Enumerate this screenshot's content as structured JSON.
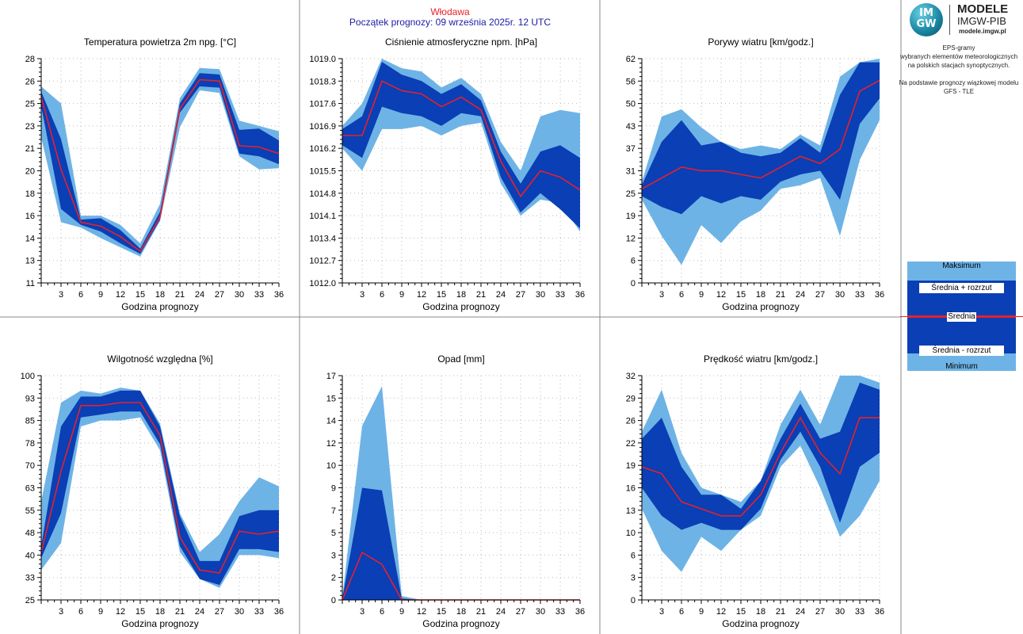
{
  "header": {
    "station": "Włodawa",
    "subtitle": "Początek prognozy: 09 września 2025r. 12 UTC"
  },
  "logo": {
    "mark_top": "IM",
    "mark_bottom": "GW",
    "title": "MODELE",
    "subtitle": "IMGW-PIB",
    "url": "modele.imgw.pl"
  },
  "side_description": [
    "EPS-gramy",
    "wybranych elementów meteorologicznych",
    "na polskich stacjach  synoptycznych.",
    "",
    "Na podstawie prognozy wiązkowej modelu",
    "GFS - TLE"
  ],
  "legend": {
    "max": "Maksimum",
    "mean_plus": "Średnia + rozrzut",
    "mean": "Średnia",
    "mean_minus": "Średnia - rozrzut",
    "min": "Minimum"
  },
  "colors": {
    "min_max_band": "#6eb3e6",
    "spread_band": "#0a3fb5",
    "mean_line": "#e8202a",
    "station_title": "#e8202a",
    "subtitle": "#1b1ba8"
  },
  "chart_data": [
    {
      "type": "area",
      "title": "Temperatura powietrza 2m npg. [°C]",
      "xlabel": "Godzina prognozy",
      "x": [
        0,
        3,
        6,
        9,
        12,
        15,
        18,
        21,
        24,
        27,
        30,
        33,
        36
      ],
      "yticks": [
        "11",
        "13",
        "14",
        "16",
        "18",
        "20",
        "21",
        "23",
        "25",
        "26",
        "28"
      ],
      "ylim": [
        11,
        28
      ],
      "series": [
        {
          "name": "Maksimum",
          "values": [
            25.9,
            24.6,
            16.1,
            16.1,
            15.4,
            14.0,
            17.0,
            25.0,
            27.3,
            27.2,
            23.3,
            22.9,
            22.5
          ]
        },
        {
          "name": "Średnia + rozrzut",
          "values": [
            25.5,
            21.9,
            15.8,
            15.9,
            15.0,
            13.6,
            16.4,
            24.6,
            26.9,
            26.8,
            22.6,
            22.7,
            21.8
          ]
        },
        {
          "name": "Średnia",
          "values": [
            25.1,
            19.6,
            15.6,
            15.3,
            14.5,
            13.4,
            16.0,
            24.2,
            26.4,
            26.3,
            21.4,
            21.3,
            20.8
          ]
        },
        {
          "name": "Średnia - rozrzut",
          "values": [
            24.4,
            16.6,
            15.4,
            14.9,
            14.0,
            13.2,
            15.8,
            23.9,
            25.9,
            25.8,
            20.8,
            20.6,
            20.0
          ]
        },
        {
          "name": "Minimum",
          "values": [
            22.0,
            15.6,
            15.2,
            14.4,
            13.7,
            13.0,
            15.7,
            22.8,
            25.6,
            25.4,
            20.6,
            19.6,
            19.7
          ]
        }
      ]
    },
    {
      "type": "area",
      "title": "Ciśnienie atmosferyczne npm. [hPa]",
      "xlabel": "Godzina prognozy",
      "x": [
        0,
        3,
        6,
        9,
        12,
        15,
        18,
        21,
        24,
        27,
        30,
        33,
        36
      ],
      "yticks": [
        "1012.0",
        "1012.7",
        "1013.4",
        "1014.1",
        "1014.8",
        "1015.5",
        "1016.2",
        "1016.9",
        "1017.6",
        "1018.3",
        "1019.0"
      ],
      "ylim": [
        1012.0,
        1019.0
      ],
      "series": [
        {
          "name": "Maksimum",
          "values": [
            1016.9,
            1017.6,
            1019.0,
            1018.7,
            1018.6,
            1018.1,
            1018.4,
            1017.9,
            1016.4,
            1015.5,
            1017.2,
            1017.4,
            1017.3
          ]
        },
        {
          "name": "Średnia + rozrzut",
          "values": [
            1016.8,
            1017.2,
            1018.9,
            1018.5,
            1018.3,
            1017.9,
            1018.2,
            1017.7,
            1016.1,
            1015.1,
            1016.1,
            1016.3,
            1015.9
          ]
        },
        {
          "name": "Średnia",
          "values": [
            1016.6,
            1016.6,
            1018.3,
            1018.0,
            1017.9,
            1017.5,
            1017.8,
            1017.4,
            1015.8,
            1014.7,
            1015.5,
            1015.3,
            1014.9
          ]
        },
        {
          "name": "Średnia - rozrzut",
          "values": [
            1016.3,
            1015.9,
            1017.5,
            1017.3,
            1017.2,
            1016.9,
            1017.3,
            1017.2,
            1015.3,
            1014.2,
            1014.8,
            1014.3,
            1013.7
          ]
        },
        {
          "name": "Minimum",
          "values": [
            1016.2,
            1015.5,
            1016.8,
            1016.8,
            1016.9,
            1016.6,
            1016.9,
            1017.0,
            1015.1,
            1014.1,
            1014.6,
            1014.5,
            1013.6
          ]
        }
      ]
    },
    {
      "type": "area",
      "title": "Porywy wiatru [km/godz.]",
      "xlabel": "Godzina prognozy",
      "x": [
        0,
        3,
        6,
        9,
        12,
        15,
        18,
        21,
        24,
        27,
        30,
        33,
        36
      ],
      "yticks": [
        "0",
        "6",
        "12",
        "19",
        "25",
        "31",
        "37",
        "43",
        "50",
        "56",
        "62"
      ],
      "ylim": [
        0,
        62
      ],
      "series": [
        {
          "name": "Maksimum",
          "values": [
            28,
            46,
            48,
            43,
            39,
            37,
            38,
            37,
            41,
            38,
            57,
            61,
            62
          ]
        },
        {
          "name": "Średnia + rozrzut",
          "values": [
            27,
            39,
            45,
            38,
            39,
            36,
            35,
            36,
            40,
            36,
            52,
            61,
            61
          ]
        },
        {
          "name": "Średnia",
          "values": [
            26,
            29,
            32,
            31,
            31,
            30,
            29,
            32,
            35,
            33,
            37,
            53,
            56
          ]
        },
        {
          "name": "Średnia - rozrzut",
          "values": [
            24,
            21,
            19,
            24,
            22,
            24,
            23,
            28,
            30,
            31,
            23,
            44,
            51
          ]
        },
        {
          "name": "Minimum",
          "values": [
            23,
            13,
            5,
            16,
            11,
            17,
            20,
            26,
            27,
            29,
            13,
            34,
            45
          ]
        }
      ]
    },
    {
      "type": "area",
      "title": "Wilgotność względna [%]",
      "xlabel": "Godzina prognozy",
      "x": [
        0,
        3,
        6,
        9,
        12,
        15,
        18,
        21,
        24,
        27,
        30,
        33,
        36
      ],
      "yticks": [
        "25",
        "33",
        "40",
        "48",
        "55",
        "63",
        "70",
        "78",
        "85",
        "93",
        "100"
      ],
      "ylim": [
        25,
        100
      ],
      "series": [
        {
          "name": "Maksimum",
          "values": [
            58,
            91,
            95,
            94,
            96,
            95,
            84,
            54,
            41,
            47,
            58,
            66,
            63
          ]
        },
        {
          "name": "Średnia + rozrzut",
          "values": [
            43,
            83,
            93,
            93,
            95,
            95,
            83,
            53,
            38,
            38,
            53,
            55,
            55
          ]
        },
        {
          "name": "Średnia",
          "values": [
            41,
            68,
            90,
            90,
            91,
            91,
            80,
            46,
            35,
            34,
            48,
            47,
            48
          ]
        },
        {
          "name": "Średnia - rozrzut",
          "values": [
            39,
            54,
            86,
            87,
            88,
            88,
            77,
            43,
            32,
            30,
            42,
            42,
            41
          ]
        },
        {
          "name": "Minimum",
          "values": [
            35,
            44,
            83,
            85,
            85,
            86,
            75,
            41,
            32,
            29,
            40,
            40,
            39
          ]
        }
      ]
    },
    {
      "type": "area",
      "title": "Opad [mm]",
      "xlabel": "Godzina prognozy",
      "x": [
        0,
        3,
        6,
        9,
        12,
        15,
        18,
        21,
        24,
        27,
        30,
        33,
        36
      ],
      "yticks": [
        "0",
        "2",
        "3",
        "5",
        "7",
        "9",
        "10",
        "12",
        "14",
        "15",
        "17"
      ],
      "ylim": [
        0,
        17
      ],
      "series": [
        {
          "name": "Maksimum",
          "values": [
            0.2,
            13.2,
            16.2,
            0.3,
            0,
            0,
            0,
            0,
            0,
            0,
            0,
            0,
            0
          ]
        },
        {
          "name": "Średnia + rozrzut",
          "values": [
            0.1,
            8.5,
            8.3,
            0.1,
            0,
            0,
            0,
            0,
            0,
            0,
            0,
            0,
            0
          ]
        },
        {
          "name": "Średnia",
          "values": [
            0.0,
            3.6,
            2.7,
            0.0,
            0,
            0,
            0,
            0,
            0,
            0,
            0,
            0,
            0
          ]
        },
        {
          "name": "Średnia - rozrzut",
          "values": [
            0,
            0,
            0,
            0,
            0,
            0,
            0,
            0,
            0,
            0,
            0,
            0,
            0
          ]
        },
        {
          "name": "Minimum",
          "values": [
            0,
            0,
            0,
            0,
            0,
            0,
            0,
            0,
            0,
            0,
            0,
            0,
            0
          ]
        }
      ]
    },
    {
      "type": "area",
      "title": "Prędkość wiatru [km/godz.]",
      "xlabel": "Godzina prognozy",
      "x": [
        0,
        3,
        6,
        9,
        12,
        15,
        18,
        21,
        24,
        27,
        30,
        33,
        36
      ],
      "yticks": [
        "0",
        "3",
        "6",
        "10",
        "13",
        "16",
        "19",
        "22",
        "26",
        "29",
        "32"
      ],
      "ylim": [
        0,
        32
      ],
      "series": [
        {
          "name": "Maksimum",
          "values": [
            24,
            30,
            21,
            16,
            15,
            14,
            17,
            25,
            30,
            25,
            32,
            32,
            31
          ]
        },
        {
          "name": "Średnia + rozrzut",
          "values": [
            23,
            26,
            19,
            15,
            15,
            13,
            17,
            23,
            28,
            23,
            24,
            31,
            30
          ]
        },
        {
          "name": "Średnia",
          "values": [
            19,
            18,
            14,
            13,
            12,
            12,
            15,
            21,
            26,
            21,
            18,
            26,
            26
          ]
        },
        {
          "name": "Średnia - rozrzut",
          "values": [
            16,
            12,
            10,
            11,
            10,
            10,
            13,
            20,
            24,
            19,
            11,
            19,
            21
          ]
        },
        {
          "name": "Minimum",
          "values": [
            13,
            7,
            4,
            9,
            7,
            10,
            12,
            19,
            22,
            16,
            9,
            12,
            17
          ]
        }
      ]
    }
  ]
}
